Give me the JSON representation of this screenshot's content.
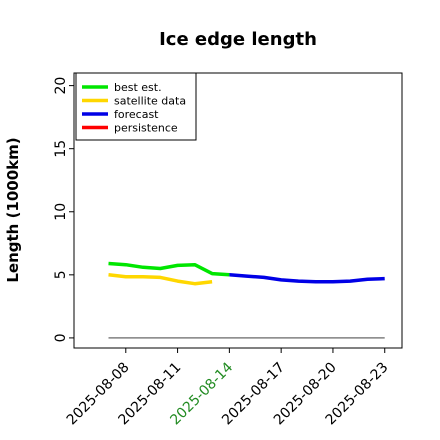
{
  "chart_data": {
    "type": "line",
    "title": "Ice edge length",
    "xlabel": "",
    "ylabel": "Length (1000km)",
    "ylim": [
      -0.8,
      21
    ],
    "yticks": [
      0,
      5,
      10,
      15,
      20
    ],
    "x_ticks": [
      {
        "date": "2025-08-08",
        "label": "2025-08-08",
        "color": "#000000"
      },
      {
        "date": "2025-08-11",
        "label": "2025-08-11",
        "color": "#000000"
      },
      {
        "date": "2025-08-14",
        "label": "2025-08-14",
        "color": "#228B22"
      },
      {
        "date": "2025-08-17",
        "label": "2025-08-17",
        "color": "#000000"
      },
      {
        "date": "2025-08-20",
        "label": "2025-08-20",
        "color": "#000000"
      },
      {
        "date": "2025-08-23",
        "label": "2025-08-23",
        "color": "#000000"
      }
    ],
    "xlim": [
      "2025-08-05",
      "2025-08-24"
    ],
    "grid": false,
    "legend_position": "top-left",
    "series": [
      {
        "name": "best est.",
        "color": "#00e600",
        "points": [
          [
            "2025-08-07",
            5.9
          ],
          [
            "2025-08-08",
            5.8
          ],
          [
            "2025-08-09",
            5.6
          ],
          [
            "2025-08-10",
            5.5
          ],
          [
            "2025-08-11",
            5.75
          ],
          [
            "2025-08-12",
            5.8
          ],
          [
            "2025-08-13",
            5.1
          ],
          [
            "2025-08-14",
            5.0
          ]
        ]
      },
      {
        "name": "satellite data",
        "color": "#ffd700",
        "points": [
          [
            "2025-08-07",
            5.0
          ],
          [
            "2025-08-08",
            4.85
          ],
          [
            "2025-08-09",
            4.85
          ],
          [
            "2025-08-10",
            4.8
          ],
          [
            "2025-08-11",
            4.5
          ],
          [
            "2025-08-12",
            4.3
          ],
          [
            "2025-08-13",
            4.45
          ]
        ]
      },
      {
        "name": "forecast",
        "color": "#0000e6",
        "points": [
          [
            "2025-08-14",
            5.0
          ],
          [
            "2025-08-15",
            4.9
          ],
          [
            "2025-08-16",
            4.8
          ],
          [
            "2025-08-17",
            4.6
          ],
          [
            "2025-08-18",
            4.5
          ],
          [
            "2025-08-19",
            4.45
          ],
          [
            "2025-08-20",
            4.45
          ],
          [
            "2025-08-21",
            4.5
          ],
          [
            "2025-08-22",
            4.65
          ],
          [
            "2025-08-23",
            4.7
          ]
        ]
      },
      {
        "name": "persistence",
        "color": "#ff0000",
        "points": []
      }
    ],
    "baseline": {
      "color": "#808080",
      "points": [
        [
          "2025-08-07",
          0
        ],
        [
          "2025-08-23",
          0
        ]
      ]
    }
  }
}
